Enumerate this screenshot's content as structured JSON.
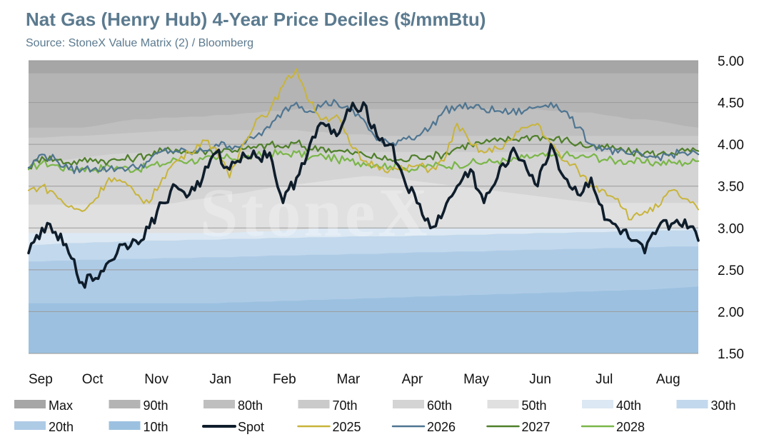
{
  "header": {
    "title": "Nat Gas (Henry Hub) 4-Year Price Deciles ($/mmBtu)",
    "subtitle": "Source: StoneX Value Matrix (2) / Bloomberg"
  },
  "watermark": "StoneX",
  "chart_data": {
    "type": "area",
    "title": "Nat Gas (Henry Hub) 4-Year Price Deciles ($/mmBtu)",
    "x_categories": [
      "Sep",
      "Oct",
      "Nov",
      "Jan",
      "Feb",
      "Mar",
      "Apr",
      "May",
      "Jun",
      "Jul",
      "Aug"
    ],
    "x_index": [
      0,
      5,
      10,
      15,
      20,
      25,
      30,
      35,
      40,
      45,
      50,
      55,
      60,
      65,
      70,
      75,
      80,
      85,
      90,
      95,
      100,
      105,
      110,
      115,
      120,
      125,
      130,
      135,
      140,
      145,
      150,
      155,
      160,
      165,
      170,
      175,
      180,
      185,
      190,
      195,
      200,
      205,
      210,
      215,
      220,
      225,
      230,
      235,
      240,
      245,
      250
    ],
    "ylim": [
      1.5,
      5.0
    ],
    "yticks": [
      "1.50",
      "2.00",
      "2.50",
      "3.00",
      "3.50",
      "4.00",
      "4.50",
      "5.00"
    ],
    "y_axis_position": "right",
    "grid": true,
    "legend_position": "bottom",
    "bands": [
      {
        "name": "Max",
        "color": "#a6a6a6",
        "values": [
          5.0,
          5.0,
          5.0,
          5.0,
          5.0,
          5.0,
          5.0,
          5.0,
          5.0,
          5.0,
          5.0,
          5.0,
          5.0,
          5.0,
          5.0,
          5.0,
          5.0,
          5.0,
          5.0,
          5.0,
          5.0,
          5.0,
          5.0,
          5.0,
          5.0,
          5.0,
          5.0,
          5.0,
          5.0,
          5.0,
          5.0,
          5.0,
          5.0,
          5.0,
          5.0,
          5.0,
          5.0,
          5.0,
          5.0,
          5.0,
          5.0,
          5.0,
          5.0,
          5.0,
          5.0,
          5.0,
          5.0,
          5.0,
          5.0,
          5.0,
          5.0
        ]
      },
      {
        "name": "90th",
        "color": "#b4b4b4",
        "values": [
          4.85,
          4.85,
          4.85,
          4.85,
          4.85,
          4.85,
          4.85,
          4.85,
          4.85,
          4.85,
          4.85,
          4.85,
          4.85,
          4.85,
          4.85,
          4.85,
          4.85,
          4.85,
          4.85,
          4.85,
          4.85,
          4.85,
          4.85,
          4.85,
          4.85,
          4.85,
          4.85,
          4.85,
          4.85,
          4.85,
          4.85,
          4.85,
          4.85,
          4.85,
          4.85,
          4.85,
          4.85,
          4.85,
          4.85,
          4.85,
          4.85,
          4.85,
          4.85,
          4.85,
          4.85,
          4.85,
          4.85,
          4.85,
          4.85,
          4.85,
          4.85
        ]
      },
      {
        "name": "80th",
        "color": "#bfbfbf",
        "values": [
          4.2,
          4.2,
          4.2,
          4.2,
          4.2,
          4.22,
          4.25,
          4.28,
          4.3,
          4.3,
          4.32,
          4.32,
          4.33,
          4.33,
          4.35,
          4.35,
          4.37,
          4.38,
          4.4,
          4.4,
          4.42,
          4.42,
          4.42,
          4.42,
          4.42,
          4.42,
          4.42,
          4.42,
          4.42,
          4.42,
          4.42,
          4.42,
          4.42,
          4.42,
          4.42,
          4.42,
          4.42,
          4.42,
          4.42,
          4.4,
          4.4,
          4.38,
          4.38,
          4.35,
          4.33,
          4.3,
          4.3,
          4.28,
          4.25,
          4.22,
          4.2
        ]
      },
      {
        "name": "70th",
        "color": "#cacaca",
        "values": [
          4.08,
          4.08,
          4.09,
          4.1,
          4.1,
          4.11,
          4.12,
          4.13,
          4.14,
          4.15,
          4.16,
          4.16,
          4.17,
          4.17,
          4.17,
          4.17,
          4.17,
          4.17,
          4.17,
          4.17,
          4.17,
          4.15,
          4.15,
          4.12,
          4.12,
          4.12,
          4.1,
          4.1,
          4.1,
          4.1,
          4.1,
          4.1,
          4.1,
          4.1,
          4.1,
          4.1,
          4.1,
          4.1,
          4.1,
          4.1,
          4.1,
          4.1,
          4.1,
          4.1,
          4.1,
          4.1,
          4.1,
          4.1,
          4.1,
          4.1,
          4.1
        ]
      },
      {
        "name": "60th",
        "color": "#d4d4d4",
        "values": [
          3.78,
          3.79,
          3.8,
          3.82,
          3.84,
          3.86,
          3.88,
          3.89,
          3.9,
          3.9,
          3.91,
          3.91,
          3.91,
          3.91,
          3.91,
          3.91,
          3.91,
          3.91,
          3.91,
          3.91,
          3.91,
          3.91,
          3.91,
          3.91,
          3.91,
          3.91,
          3.91,
          3.91,
          3.91,
          3.91,
          3.91,
          3.91,
          3.91,
          3.91,
          3.91,
          3.91,
          3.91,
          3.91,
          3.91,
          3.91,
          3.91,
          3.91,
          3.91,
          3.91,
          3.91,
          3.91,
          3.91,
          3.91,
          3.91,
          3.91,
          3.91
        ]
      },
      {
        "name": "50th",
        "color": "#e0e0e0",
        "values": [
          3.28,
          3.28,
          3.28,
          3.28,
          3.28,
          3.28,
          3.28,
          3.28,
          3.28,
          3.28,
          3.28,
          3.3,
          3.33,
          3.35,
          3.38,
          3.4,
          3.42,
          3.45,
          3.48,
          3.5,
          3.52,
          3.54,
          3.56,
          3.58,
          3.6,
          3.62,
          3.62,
          3.6,
          3.58,
          3.56,
          3.54,
          3.52,
          3.5,
          3.48,
          3.46,
          3.44,
          3.42,
          3.4,
          3.38,
          3.36,
          3.34,
          3.32,
          3.3,
          3.3,
          3.3,
          3.3,
          3.3,
          3.3,
          3.3,
          3.3,
          3.3
        ]
      },
      {
        "name": "40th",
        "color": "#dce8f3",
        "values": [
          2.94,
          2.94,
          2.94,
          2.94,
          2.94,
          2.94,
          2.94,
          2.94,
          2.94,
          2.94,
          2.94,
          2.94,
          2.94,
          2.94,
          2.94,
          2.94,
          2.95,
          2.96,
          2.96,
          2.97,
          2.98,
          2.99,
          3.0,
          3.0,
          3.0,
          3.0,
          3.0,
          3.0,
          3.0,
          3.0,
          3.0,
          3.0,
          3.0,
          3.0,
          3.0,
          3.0,
          3.0,
          3.0,
          3.0,
          3.0,
          3.0,
          3.0,
          3.0,
          3.0,
          3.0,
          3.0,
          3.0,
          3.0,
          3.0,
          3.0,
          3.0
        ]
      },
      {
        "name": "30th",
        "color": "#c2d8ec",
        "values": [
          2.8,
          2.8,
          2.81,
          2.82,
          2.82,
          2.83,
          2.83,
          2.84,
          2.84,
          2.85,
          2.85,
          2.85,
          2.86,
          2.86,
          2.86,
          2.87,
          2.87,
          2.87,
          2.88,
          2.88,
          2.88,
          2.89,
          2.89,
          2.89,
          2.9,
          2.9,
          2.9,
          2.9,
          2.9,
          2.91,
          2.91,
          2.91,
          2.92,
          2.92,
          2.92,
          2.93,
          2.93,
          2.93,
          2.94,
          2.94,
          2.94,
          2.95,
          2.95,
          2.95,
          2.96,
          2.96,
          2.96,
          2.97,
          2.97,
          2.97,
          2.98
        ]
      },
      {
        "name": "20th",
        "color": "#aecbe6",
        "values": [
          2.6,
          2.6,
          2.61,
          2.61,
          2.62,
          2.62,
          2.62,
          2.63,
          2.63,
          2.63,
          2.64,
          2.64,
          2.64,
          2.65,
          2.65,
          2.65,
          2.66,
          2.66,
          2.67,
          2.67,
          2.67,
          2.68,
          2.68,
          2.68,
          2.69,
          2.69,
          2.69,
          2.7,
          2.7,
          2.71,
          2.71,
          2.71,
          2.72,
          2.72,
          2.72,
          2.73,
          2.73,
          2.74,
          2.74,
          2.74,
          2.75,
          2.75,
          2.75,
          2.76,
          2.76,
          2.76,
          2.77,
          2.77,
          2.78,
          2.78,
          2.78
        ]
      },
      {
        "name": "10th",
        "color": "#9cc1e0",
        "values": [
          2.1,
          2.1,
          2.1,
          2.1,
          2.1,
          2.1,
          2.1,
          2.1,
          2.1,
          2.1,
          2.1,
          2.1,
          2.1,
          2.1,
          2.1,
          2.11,
          2.11,
          2.12,
          2.12,
          2.13,
          2.13,
          2.14,
          2.14,
          2.15,
          2.15,
          2.16,
          2.16,
          2.17,
          2.17,
          2.18,
          2.18,
          2.19,
          2.19,
          2.2,
          2.2,
          2.21,
          2.21,
          2.22,
          2.22,
          2.23,
          2.23,
          2.24,
          2.24,
          2.25,
          2.25,
          2.26,
          2.26,
          2.27,
          2.28,
          2.29,
          2.3
        ]
      }
    ],
    "series": [
      {
        "name": "2028",
        "color": "#7ab648",
        "width": 2.2,
        "values": [
          3.7,
          3.78,
          3.75,
          3.7,
          3.72,
          3.7,
          3.74,
          3.72,
          3.7,
          3.74,
          3.76,
          3.82,
          3.8,
          3.82,
          3.82,
          3.84,
          3.84,
          3.86,
          3.9,
          3.88,
          3.9,
          3.84,
          3.86,
          3.82,
          3.8,
          3.78,
          3.76,
          3.74,
          3.72,
          3.7,
          3.75,
          3.74,
          3.76,
          3.78,
          3.78,
          3.8,
          3.8,
          3.84,
          3.86,
          3.86,
          3.88,
          3.84,
          3.86,
          3.82,
          3.8,
          3.8,
          3.78,
          3.78,
          3.78,
          3.78,
          3.8
        ]
      },
      {
        "name": "2027",
        "color": "#4f7f2a",
        "width": 2.2,
        "values": [
          3.72,
          3.85,
          3.82,
          3.78,
          3.8,
          3.82,
          3.8,
          3.82,
          3.84,
          3.88,
          3.92,
          3.94,
          3.9,
          3.92,
          3.92,
          3.94,
          3.94,
          3.96,
          4.0,
          3.96,
          4.02,
          3.94,
          3.96,
          3.92,
          3.9,
          3.88,
          3.84,
          3.82,
          3.8,
          3.86,
          3.86,
          3.88,
          3.96,
          4.0,
          4.02,
          4.04,
          4.06,
          4.08,
          4.1,
          4.06,
          4.06,
          4.0,
          3.98,
          3.96,
          3.94,
          3.9,
          3.9,
          3.88,
          3.9,
          3.92,
          3.92
        ]
      },
      {
        "name": "2026",
        "color": "#4f7591",
        "width": 2.2,
        "values": [
          3.72,
          3.88,
          3.82,
          3.7,
          3.7,
          3.72,
          3.7,
          3.72,
          3.72,
          3.8,
          3.92,
          3.92,
          3.9,
          3.92,
          4.0,
          3.98,
          4.0,
          4.1,
          4.2,
          4.4,
          4.5,
          4.4,
          4.48,
          4.5,
          4.4,
          4.3,
          4.05,
          4.0,
          4.08,
          4.1,
          4.2,
          4.4,
          4.45,
          4.45,
          4.42,
          4.4,
          4.38,
          4.4,
          4.45,
          4.5,
          4.4,
          4.2,
          4.0,
          3.95,
          3.9,
          3.88,
          3.85,
          3.85,
          3.88,
          3.9,
          3.88
        ]
      },
      {
        "name": "2025",
        "color": "#c8b43a",
        "width": 2.0,
        "values": [
          3.45,
          3.5,
          3.4,
          3.25,
          3.2,
          3.35,
          3.6,
          3.55,
          3.4,
          3.3,
          3.6,
          3.8,
          3.9,
          4.05,
          3.95,
          3.6,
          4.0,
          4.3,
          4.4,
          4.7,
          4.9,
          4.5,
          4.3,
          4.35,
          4.0,
          3.8,
          3.75,
          3.7,
          3.7,
          3.75,
          3.7,
          3.8,
          4.25,
          4.0,
          3.9,
          3.95,
          4.05,
          4.2,
          4.25,
          4.0,
          3.8,
          3.7,
          3.5,
          3.45,
          3.35,
          3.1,
          3.2,
          3.25,
          3.45,
          3.35,
          3.22
        ]
      },
      {
        "name": "Spot",
        "color": "#0f1d2b",
        "width": 3.6,
        "values": [
          2.7,
          3.0,
          2.95,
          2.7,
          2.35,
          2.4,
          2.6,
          2.8,
          2.85,
          3.0,
          3.3,
          3.5,
          3.4,
          3.6,
          3.9,
          3.7,
          3.9,
          3.85,
          3.9,
          3.3,
          3.6,
          4.0,
          4.25,
          4.1,
          4.4,
          4.5,
          4.1,
          4.0,
          3.6,
          3.3,
          3.0,
          3.2,
          3.5,
          3.7,
          3.3,
          3.6,
          3.9,
          3.8,
          3.5,
          4.0,
          3.6,
          3.4,
          3.6,
          3.1,
          3.0,
          2.85,
          2.7,
          3.0,
          3.05,
          3.1,
          2.85
        ]
      }
    ],
    "legend": [
      {
        "label": "Max",
        "kind": "band",
        "color": "#a6a6a6"
      },
      {
        "label": "90th",
        "kind": "band",
        "color": "#b4b4b4"
      },
      {
        "label": "80th",
        "kind": "band",
        "color": "#bfbfbf"
      },
      {
        "label": "70th",
        "kind": "band",
        "color": "#cacaca"
      },
      {
        "label": "60th",
        "kind": "band",
        "color": "#d4d4d4"
      },
      {
        "label": "50th",
        "kind": "band",
        "color": "#e0e0e0"
      },
      {
        "label": "40th",
        "kind": "band",
        "color": "#dce8f3"
      },
      {
        "label": "30th",
        "kind": "band",
        "color": "#c2d8ec"
      },
      {
        "label": "20th",
        "kind": "band",
        "color": "#aecbe6"
      },
      {
        "label": "10th",
        "kind": "band",
        "color": "#9cc1e0"
      },
      {
        "label": "Spot",
        "kind": "line",
        "color": "#0f1d2b"
      },
      {
        "label": "2025",
        "kind": "line",
        "color": "#c8b43a"
      },
      {
        "label": "2026",
        "kind": "line",
        "color": "#4f7591"
      },
      {
        "label": "2027",
        "kind": "line",
        "color": "#4f7f2a"
      },
      {
        "label": "2028",
        "kind": "line",
        "color": "#7ab648"
      }
    ]
  }
}
